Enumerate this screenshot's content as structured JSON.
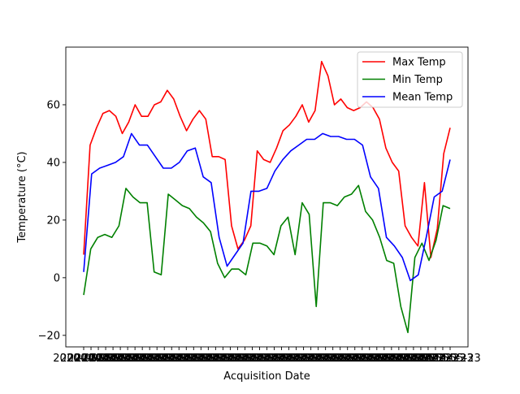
{
  "chart_data": {
    "type": "line",
    "title": "",
    "xlabel": "Acquisition Date",
    "ylabel": "Temperature (°C)",
    "ylim": [
      -24,
      80
    ],
    "yticks": [
      -20,
      0,
      20,
      40,
      60
    ],
    "xtick_label": "2020-05-23",
    "xtick_count": 51,
    "legend_position": "top-right",
    "grid": false,
    "series": [
      {
        "name": "Max Temp",
        "color": "#ff0000",
        "values": [
          8,
          46,
          52,
          57,
          58,
          56,
          50,
          54,
          60,
          56,
          56,
          60,
          61,
          65,
          62,
          56,
          51,
          55,
          58,
          55,
          42,
          42,
          41,
          18,
          10,
          13,
          18,
          44,
          41,
          40,
          45,
          51,
          53,
          56,
          60,
          54,
          58,
          75,
          70,
          60,
          62,
          59,
          58,
          59,
          61,
          59,
          55,
          45,
          40,
          37,
          18,
          14,
          11,
          33,
          7,
          17,
          43,
          52
        ]
      },
      {
        "name": "Min Temp",
        "color": "#008000",
        "values": [
          -6,
          10,
          14,
          15,
          14,
          18,
          31,
          28,
          26,
          26,
          2,
          1,
          29,
          27,
          25,
          24,
          21,
          19,
          16,
          5,
          0,
          3,
          3,
          1,
          12,
          12,
          11,
          8,
          18,
          21,
          8,
          26,
          22,
          -10,
          26,
          26,
          25,
          28,
          29,
          32,
          23,
          20,
          14,
          6,
          5,
          -10,
          -19,
          7,
          12,
          6,
          13,
          25,
          24
        ]
      },
      {
        "name": "Mean Temp",
        "color": "#0000ff",
        "values": [
          2,
          36,
          38,
          39,
          40,
          42,
          50,
          46,
          46,
          42,
          38,
          38,
          40,
          44,
          45,
          35,
          33,
          14,
          4,
          8,
          12,
          30,
          30,
          31,
          37,
          41,
          44,
          46,
          48,
          48,
          50,
          49,
          49,
          48,
          48,
          46,
          35,
          31,
          14,
          11,
          7,
          -1,
          1,
          14,
          28,
          30,
          41
        ]
      }
    ]
  }
}
